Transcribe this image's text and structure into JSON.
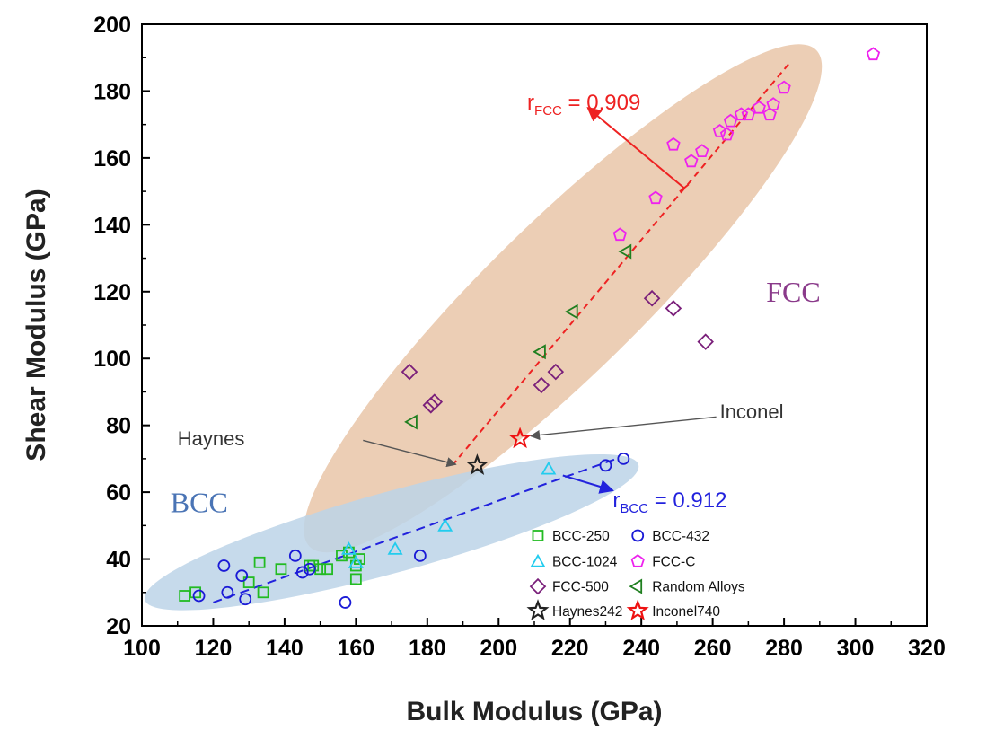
{
  "chart_data": {
    "type": "scatter",
    "title": "",
    "xlabel": "Bulk Modulus (GPa)",
    "ylabel": "Shear Modulus (GPa)",
    "xlim": [
      100,
      320
    ],
    "ylim": [
      20,
      200
    ],
    "xticks": [
      100,
      120,
      140,
      160,
      180,
      200,
      220,
      240,
      260,
      280,
      300,
      320
    ],
    "yticks": [
      20,
      40,
      60,
      80,
      100,
      120,
      140,
      160,
      180,
      200
    ],
    "grid": false,
    "legend_position": "bottom-right",
    "colors": {
      "bcc250": "#22bb22",
      "bcc432": "#1a1ad6",
      "bcc1024": "#22ccee",
      "fccc": "#ee22ee",
      "fcc500": "#7a1f7a",
      "random": "#1f7f1f",
      "haynes": "#222222",
      "inconel": "#ee1111",
      "fcc_region": "#e9c6a8",
      "bcc_region": "#bcd3e8",
      "fcc_fit": "#ee2222",
      "bcc_fit": "#2222dd"
    },
    "series": [
      {
        "name": "BCC-250",
        "marker": "square",
        "color_key": "bcc250",
        "points": [
          [
            112,
            29
          ],
          [
            115,
            30
          ],
          [
            130,
            33
          ],
          [
            133,
            39
          ],
          [
            134,
            30
          ],
          [
            139,
            37
          ],
          [
            147,
            38
          ],
          [
            148,
            38
          ],
          [
            150,
            37
          ],
          [
            152,
            37
          ],
          [
            156,
            41
          ],
          [
            158,
            42
          ],
          [
            160,
            34
          ],
          [
            160,
            38
          ],
          [
            161,
            40
          ]
        ]
      },
      {
        "name": "BCC-432",
        "marker": "circle",
        "color_key": "bcc432",
        "points": [
          [
            116,
            29
          ],
          [
            123,
            38
          ],
          [
            124,
            30
          ],
          [
            128,
            35
          ],
          [
            129,
            28
          ],
          [
            143,
            41
          ],
          [
            145,
            36
          ],
          [
            147,
            37
          ],
          [
            157,
            27
          ],
          [
            178,
            41
          ],
          [
            230,
            68
          ],
          [
            235,
            70
          ]
        ]
      },
      {
        "name": "BCC-1024",
        "marker": "triangle",
        "color_key": "bcc1024",
        "points": [
          [
            158,
            43
          ],
          [
            160,
            39
          ],
          [
            171,
            43
          ],
          [
            185,
            50
          ],
          [
            214,
            67
          ]
        ]
      },
      {
        "name": "FCC-C",
        "marker": "pentagon",
        "color_key": "fccc",
        "points": [
          [
            234,
            137
          ],
          [
            244,
            148
          ],
          [
            249,
            164
          ],
          [
            254,
            159
          ],
          [
            257,
            162
          ],
          [
            262,
            168
          ],
          [
            264,
            167
          ],
          [
            265,
            171
          ],
          [
            268,
            173
          ],
          [
            270,
            173
          ],
          [
            273,
            175
          ],
          [
            276,
            173
          ],
          [
            277,
            176
          ],
          [
            280,
            181
          ],
          [
            305,
            191
          ]
        ]
      },
      {
        "name": "FCC-500",
        "marker": "diamond",
        "color_key": "fcc500",
        "points": [
          [
            175,
            96
          ],
          [
            181,
            86
          ],
          [
            182,
            87
          ],
          [
            212,
            92
          ],
          [
            216,
            96
          ],
          [
            243,
            118
          ],
          [
            249,
            115
          ],
          [
            258,
            105
          ]
        ]
      },
      {
        "name": "Random Alloys",
        "marker": "triangle-left",
        "color_key": "random",
        "points": [
          [
            176,
            81
          ],
          [
            212,
            102
          ],
          [
            221,
            114
          ],
          [
            236,
            132
          ]
        ]
      },
      {
        "name": "Haynes242",
        "marker": "star",
        "color_key": "haynes",
        "points": [
          [
            194,
            68
          ]
        ]
      },
      {
        "name": "Inconel740",
        "marker": "star",
        "color_key": "inconel",
        "points": [
          [
            206,
            76
          ]
        ]
      }
    ],
    "fits": [
      {
        "name": "FCC",
        "color_key": "fcc_fit",
        "from": [
          187,
          68
        ],
        "to": [
          282,
          189
        ]
      },
      {
        "name": "BCC",
        "color_key": "bcc_fit",
        "from": [
          120,
          27
        ],
        "to": [
          233,
          70
        ]
      }
    ],
    "regions": [
      {
        "name": "FCC",
        "color_key": "fcc_region"
      },
      {
        "name": "BCC",
        "color_key": "bcc_region"
      }
    ],
    "annotations": {
      "fcc_label": "FCC",
      "bcc_label": "BCC",
      "r_fcc_main": "r",
      "r_fcc_sub": "FCC",
      "r_fcc_value": " = 0.909",
      "r_bcc_main": "r",
      "r_bcc_sub": "BCC",
      "r_bcc_value": " = 0.912",
      "haynes_label": "Haynes",
      "inconel_label": "Inconel"
    }
  }
}
